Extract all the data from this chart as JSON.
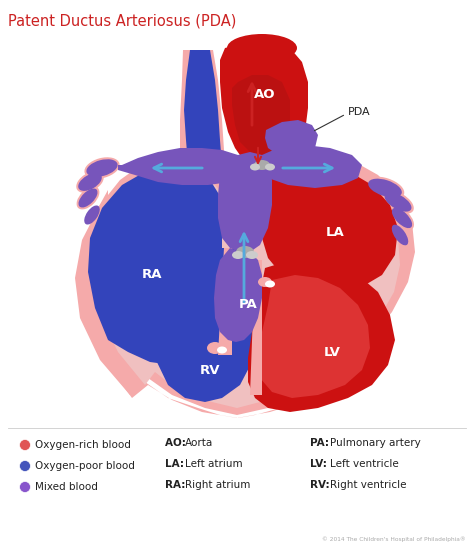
{
  "title": "Patent Ductus Arteriosus (PDA)",
  "title_color": "#cc2222",
  "title_fontsize": 10.5,
  "bg_color": "#ffffff",
  "legend_items": [
    {
      "label": "Oxygen-rich blood",
      "color": "#e05555"
    },
    {
      "label": "Oxygen-poor blood",
      "color": "#4455bb"
    },
    {
      "label": "Mixed blood",
      "color": "#8855cc"
    }
  ],
  "abbreviations_col1": [
    "AO: Aorta",
    "LA: Left atrium",
    "RA: Right atrium"
  ],
  "abbreviations_col2": [
    "PA: Pulmonary artery",
    "LV: Left ventricle",
    "RV: Right ventricle"
  ],
  "colors": {
    "rich": "#cc1111",
    "poor": "#3344bb",
    "mixed": "#7755bb",
    "pink": "#f5aaaa",
    "pink2": "#f0c0c0",
    "white": "#ffffff",
    "blue_arr": "#55aadd",
    "red_arr": "#cc2222",
    "gray": "#888899",
    "lgray": "#ccccdd",
    "dark": "#222222"
  },
  "copyright": "© 2014 The Children's Hospital of Philadelphia®",
  "labels": {
    "PDA": "PDA",
    "AO": "AO",
    "PA": "PA",
    "RA": "RA",
    "LA": "LA",
    "RV": "RV",
    "LV": "LV"
  }
}
